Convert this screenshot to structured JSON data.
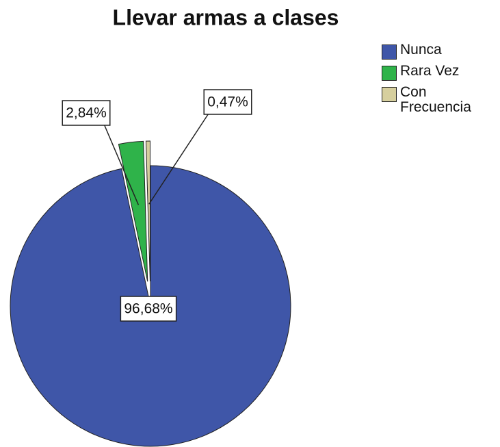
{
  "chart_data": {
    "type": "pie",
    "title": "Llevar armas a clases",
    "categories": [
      "Nunca",
      "Rara Vez",
      "Con Frecuencia"
    ],
    "values": [
      96.68,
      2.84,
      0.47
    ],
    "value_labels": [
      "96,68%",
      "2,84%",
      "0,47%"
    ],
    "colors": [
      "#3f56a8",
      "#2fb34a",
      "#d6cf9e"
    ],
    "legend": "top-right"
  }
}
